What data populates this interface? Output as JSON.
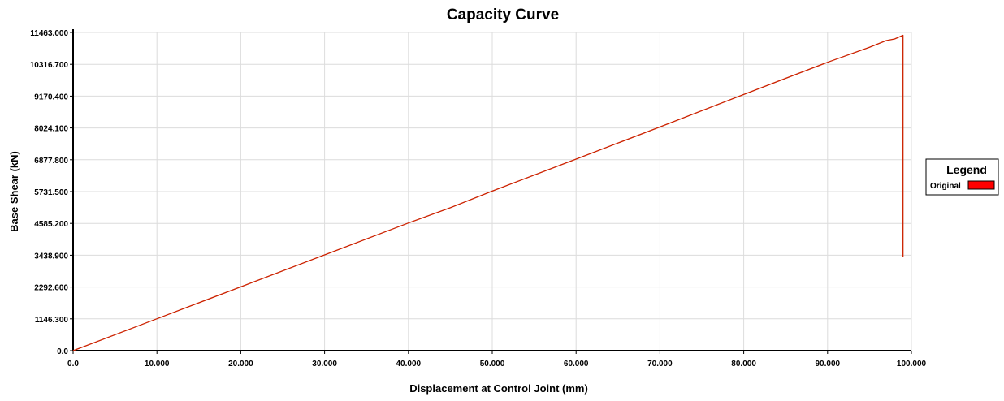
{
  "chart_data": {
    "type": "line",
    "title": "Capacity Curve",
    "xlabel": "Displacement at Control Joint (mm)",
    "ylabel": "Base Shear (kN)",
    "xlim": [
      0,
      100
    ],
    "ylim": [
      0,
      11463
    ],
    "x_ticks": [
      0,
      10,
      20,
      30,
      40,
      50,
      60,
      70,
      80,
      90,
      100
    ],
    "x_tick_labels": [
      "0.0",
      "10.000",
      "20.000",
      "30.000",
      "40.000",
      "50.000",
      "60.000",
      "70.000",
      "80.000",
      "90.000",
      "100.000"
    ],
    "y_ticks": [
      0,
      1146.3,
      2292.6,
      3438.9,
      4585.2,
      5731.5,
      6877.8,
      8024.1,
      9170.4,
      10316.7,
      11463
    ],
    "y_tick_labels": [
      "0.0",
      "1146.300",
      "2292.600",
      "3438.900",
      "4585.200",
      "5731.500",
      "6877.800",
      "8024.100",
      "9170.400",
      "10316.700",
      "11463.000"
    ],
    "grid": true,
    "legend": {
      "title": "Legend",
      "placement": "right"
    },
    "series": [
      {
        "name": "Original",
        "color": "#cc2200",
        "swatch_color": "#ff0000",
        "x": [
          0,
          10,
          20,
          30,
          40,
          45,
          50,
          60,
          70,
          80,
          90,
          95,
          97,
          98,
          99,
          99
        ],
        "y": [
          0,
          1150,
          2300,
          3450,
          4600,
          5150,
          5750,
          6900,
          8060,
          9230,
          10390,
          10930,
          11170,
          11230,
          11360,
          3390
        ]
      }
    ]
  }
}
